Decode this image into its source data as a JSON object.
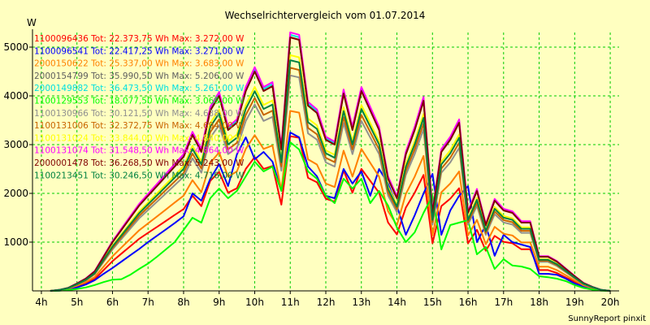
{
  "chart_data": {
    "type": "line",
    "title": "Wechselrichtervergleich vom 01.07.2014",
    "ylabel": "W",
    "footer": "SunnyReport pinxit",
    "xlim": [
      3.75,
      20.25
    ],
    "ylim": [
      0,
      5300
    ],
    "x_ticks": [
      4,
      5,
      6,
      7,
      8,
      9,
      10,
      11,
      12,
      13,
      14,
      15,
      16,
      17,
      18,
      19,
      20
    ],
    "x_tick_labels": [
      "4h",
      "5h",
      "6h",
      "7h",
      "8h",
      "9h",
      "10h",
      "11h",
      "12h",
      "13h",
      "14h",
      "15h",
      "16h",
      "17h",
      "18h",
      "19h",
      "20h"
    ],
    "y_ticks": [
      1000,
      2000,
      3000,
      4000,
      5000
    ],
    "y_tick_labels": [
      "1000",
      "2000",
      "3000",
      "4000",
      "5000"
    ],
    "grid": true,
    "legend_position": "top-left inside",
    "background_color": "#ffffc0",
    "grid_color": "#00cc00",
    "times": [
      4.25,
      4.5,
      4.75,
      5,
      5.25,
      5.5,
      5.75,
      6,
      6.25,
      6.5,
      6.75,
      7,
      7.25,
      7.5,
      7.75,
      8,
      8.25,
      8.5,
      8.75,
      9,
      9.25,
      9.5,
      9.75,
      10,
      10.25,
      10.5,
      10.75,
      11,
      11.25,
      11.5,
      11.75,
      12,
      12.25,
      12.5,
      12.75,
      13,
      13.25,
      13.5,
      13.75,
      14,
      14.25,
      14.5,
      14.75,
      15,
      15.25,
      15.5,
      15.75,
      16,
      16.25,
      16.5,
      16.75,
      17,
      17.25,
      17.5,
      17.75,
      18,
      18.25,
      18.5,
      18.75,
      19,
      19.25,
      19.5,
      19.75,
      20
    ],
    "series": [
      {
        "name": "1100096436 Tot: 22.373,75 Wh Max: 3.272,00 W",
        "color": "#ff0000",
        "scale": 0.61,
        "values": null
      },
      {
        "name": "1100096541 Tot: 22.417,25 Wh Max: 3.271,00 W",
        "color": "#0000ff",
        "scale": 0.615,
        "values": [
          0,
          5,
          25,
          70,
          130,
          220,
          350,
          470,
          600,
          730,
          860,
          1000,
          1130,
          1260,
          1390,
          1530,
          2000,
          1850,
          2300,
          2600,
          2150,
          2800,
          3150,
          2700,
          2850,
          2650,
          2050,
          3250,
          3150,
          2550,
          2350,
          1950,
          1900,
          2500,
          2200,
          2450,
          1950,
          2500,
          2200,
          1750,
          1150,
          1550,
          2000,
          2400,
          1150,
          1650,
          1950,
          2150,
          1000,
          1350,
          720,
          1150,
          1000,
          950,
          900,
          350,
          350,
          330,
          250,
          150,
          90,
          40,
          10,
          0
        ]
      },
      {
        "name": "2000150622 Tot: 25.337,00 Wh Max: 3.683,00 W",
        "color": "#ff8000",
        "scale": 0.71,
        "values": null
      },
      {
        "name": "2000154799 Tot: 35.990,50 Wh Max: 5.206,00 W",
        "color": "#606060",
        "scale": 1.0,
        "values": [
          0,
          20,
          60,
          150,
          250,
          400,
          700,
          1000,
          1250,
          1500,
          1750,
          1950,
          2150,
          2350,
          2550,
          2750,
          3200,
          2850,
          3700,
          4000,
          3300,
          3450,
          4100,
          4500,
          4100,
          4200,
          2900,
          5200,
          5150,
          3800,
          3650,
          3100,
          3000,
          4050,
          3300,
          4100,
          3700,
          3300,
          2300,
          1900,
          2800,
          3300,
          3900,
          1600,
          2850,
          3100,
          3450,
          1600,
          2050,
          1350,
          1850,
          1650,
          1600,
          1400,
          1400,
          700,
          700,
          600,
          450,
          300,
          160,
          80,
          20,
          0
        ]
      },
      {
        "name": "2000149882 Tot: 36.473,50 Wh Max: 5.261,00 W",
        "color": "#00e0e0",
        "scale": 1.01,
        "values": null
      },
      {
        "name": "1100129553 Tot: 18.077,50 Wh Max: 3.068,00 W",
        "color": "#00ff00",
        "scale": 0.5,
        "values": [
          0,
          5,
          15,
          40,
          70,
          120,
          180,
          230,
          240,
          330,
          450,
          560,
          700,
          850,
          1000,
          1250,
          1500,
          1400,
          1900,
          2100,
          1900,
          2050,
          2350,
          2650,
          2450,
          2550,
          2050,
          3050,
          2900,
          2450,
          2300,
          1950,
          1800,
          2300,
          2100,
          2300,
          1800,
          2050,
          1750,
          1300,
          1000,
          1200,
          1600,
          1950,
          850,
          1350,
          1400,
          1450,
          750,
          900,
          450,
          650,
          520,
          500,
          450,
          300,
          280,
          250,
          200,
          120,
          60,
          25,
          5,
          0
        ]
      },
      {
        "name": "1100130966 Tot: 30.121,50 Wh Max: 4.638,00 W",
        "color": "#909090",
        "scale": 0.85,
        "values": null
      },
      {
        "name": "1100131006 Tot: 32.372,75 Wh Max: 4.694,00 W",
        "color": "#c86400",
        "scale": 0.88,
        "values": null
      },
      {
        "name": "1100131024 Tot: 33.844,00 Wh Max: 4.840,00 W",
        "color": "#ffff00",
        "scale": 0.93,
        "values": null
      },
      {
        "name": "1100131074 Tot: 31.548,50 Wh Max: 4.864,00 W",
        "color": "#ff00ff",
        "scale": 1.02,
        "values": null
      },
      {
        "name": "2000001478 Tot: 36.268,50 Wh Max: 5.243,00 W",
        "color": "#800000",
        "scale": 1.0,
        "values": null
      },
      {
        "name": "1100213451 Tot: 30.246,50 Wh Max: 4.716,00 W",
        "color": "#008040",
        "scale": 0.91,
        "values": null
      }
    ]
  }
}
